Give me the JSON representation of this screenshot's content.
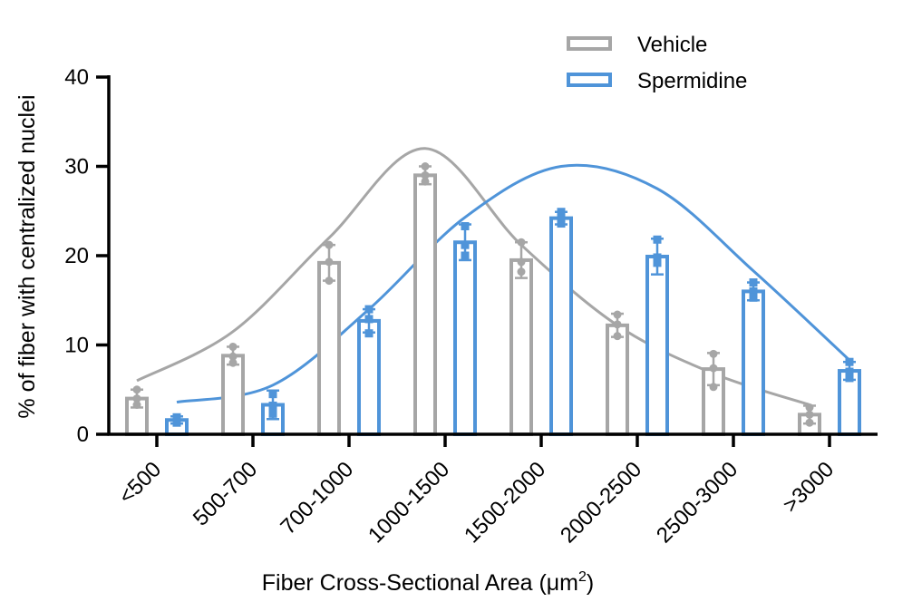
{
  "chart_data": {
    "type": "bar",
    "title": "",
    "xlabel": "Fiber Cross-Sectional Area (μm",
    "xlabel_superscript": "2",
    "xlabel_suffix": ")",
    "ylabel": "% of fiber with centralized nuclei",
    "ylim": [
      0,
      40
    ],
    "yticks": [
      "0",
      "10",
      "20",
      "30",
      "40"
    ],
    "ytick_values": [
      0,
      10,
      20,
      30,
      40
    ],
    "categories": [
      "<500",
      "500-700",
      "700-1000",
      "1000-1500",
      "1500-2000",
      "2000-2500",
      "2500-3000",
      ">3000"
    ],
    "legend_position": "top-right",
    "grid": false,
    "series": [
      {
        "name": "Vehicle",
        "color": "#a6a6a6",
        "values": [
          4.0,
          8.8,
          19.2,
          29.0,
          19.5,
          12.2,
          7.3,
          2.2
        ],
        "error": [
          1.0,
          1.0,
          2.0,
          1.0,
          2.0,
          1.3,
          1.8,
          1.0
        ],
        "points": [
          [
            5.0,
            4.0,
            3.3
          ],
          [
            9.8,
            8.7,
            8.0
          ],
          [
            21.2,
            19.3,
            17.2
          ],
          [
            30.0,
            29.0,
            28.3
          ],
          [
            21.5,
            19.3,
            18.2
          ],
          [
            13.4,
            12.3,
            11.0
          ],
          [
            9.0,
            7.4,
            5.3
          ],
          [
            3.0,
            2.2,
            1.3
          ]
        ],
        "fit_curve": [
          [
            0,
            6.0
          ],
          [
            1,
            11.5
          ],
          [
            2,
            22.0
          ],
          [
            3,
            32.0
          ],
          [
            4,
            21.2
          ],
          [
            5,
            12.2
          ],
          [
            6,
            6.8
          ],
          [
            7,
            3.3
          ]
        ]
      },
      {
        "name": "Spermidine",
        "color": "#4f94d9",
        "values": [
          1.6,
          3.3,
          12.7,
          21.5,
          24.2,
          19.9,
          16.0,
          7.1
        ],
        "error": [
          0.4,
          1.6,
          1.3,
          2.0,
          0.7,
          2.0,
          1.0,
          1.0
        ],
        "points": [
          [
            1.9,
            1.6,
            1.3
          ],
          [
            4.5,
            3.2,
            2.3
          ],
          [
            14.0,
            12.9,
            11.3
          ],
          [
            23.3,
            21.2,
            20.0
          ],
          [
            24.9,
            24.2,
            23.6
          ],
          [
            21.8,
            19.8,
            19.2
          ],
          [
            17.0,
            16.0,
            15.3
          ],
          [
            8.1,
            7.0,
            6.3
          ]
        ],
        "fit_curve": [
          [
            0,
            3.6
          ],
          [
            1,
            5.5
          ],
          [
            2,
            14.0
          ],
          [
            3,
            24.3
          ],
          [
            4,
            30.0
          ],
          [
            5,
            27.5
          ],
          [
            6,
            18.3
          ],
          [
            7,
            8.3
          ]
        ]
      }
    ]
  }
}
